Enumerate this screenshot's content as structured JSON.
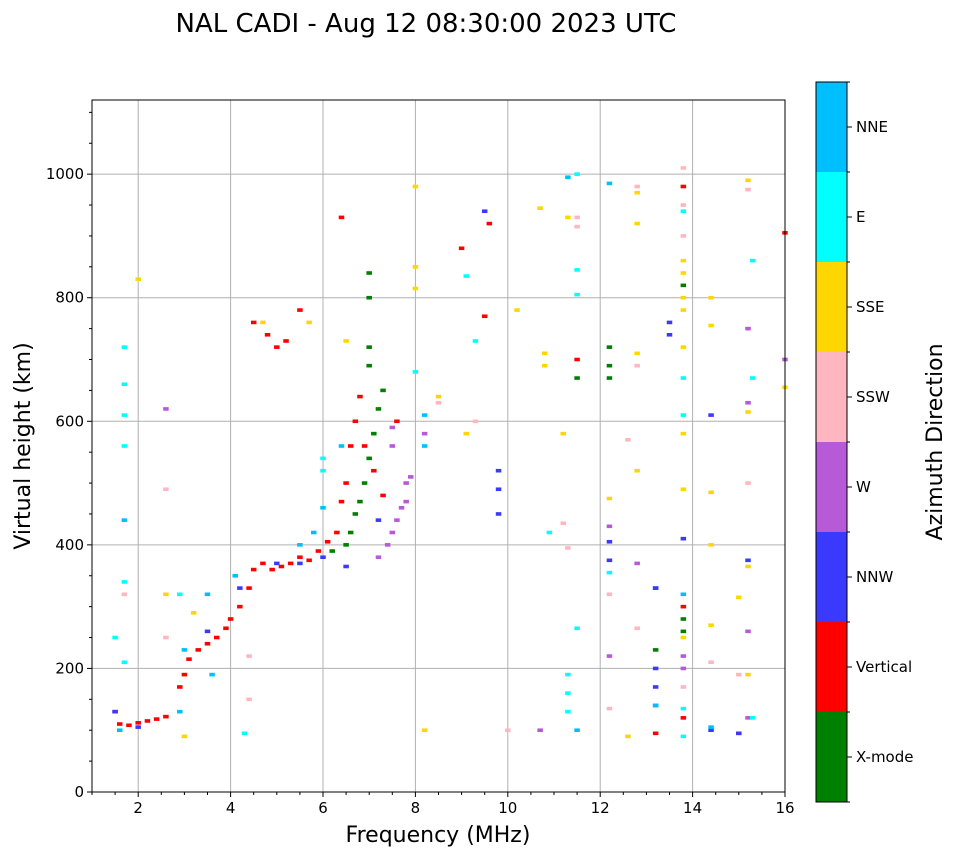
{
  "chart_data": {
    "type": "scatter",
    "title": "NAL CADI - Aug 12 08:30:00 2023 UTC",
    "xlabel": "Frequency (MHz)",
    "ylabel": "Virtual height (km)",
    "xlim": [
      1,
      16
    ],
    "ylim": [
      0,
      1120
    ],
    "x_ticks": [
      2,
      4,
      6,
      8,
      10,
      12,
      14,
      16
    ],
    "x_tick_labels": [
      "2",
      "4",
      "6",
      "8",
      "10",
      "12",
      "14",
      "16"
    ],
    "y_ticks": [
      0,
      200,
      400,
      600,
      800,
      1000
    ],
    "y_tick_labels": [
      "0",
      "200",
      "400",
      "600",
      "800",
      "1000"
    ],
    "grid": true,
    "colorbar": {
      "label": "Azimuth Direction",
      "entries": [
        {
          "name": "X-mode",
          "color": "#008000"
        },
        {
          "name": "Vertical",
          "color": "#ff0000"
        },
        {
          "name": "NNW",
          "color": "#3a3aff"
        },
        {
          "name": "W",
          "color": "#b65ad7"
        },
        {
          "name": "SSW",
          "color": "#ffb6c1"
        },
        {
          "name": "SSE",
          "color": "#ffd700"
        },
        {
          "name": "E",
          "color": "#00ffff"
        },
        {
          "name": "NNE",
          "color": "#00bfff"
        }
      ]
    },
    "series": [
      {
        "name": "Vertical",
        "points": [
          [
            1.5,
            130
          ],
          [
            1.6,
            110
          ],
          [
            1.8,
            108
          ],
          [
            2.0,
            112
          ],
          [
            2.2,
            115
          ],
          [
            2.4,
            118
          ],
          [
            2.6,
            122
          ],
          [
            2.9,
            170
          ],
          [
            3.0,
            190
          ],
          [
            3.1,
            215
          ],
          [
            3.3,
            230
          ],
          [
            3.5,
            240
          ],
          [
            3.7,
            250
          ],
          [
            3.9,
            265
          ],
          [
            4.0,
            280
          ],
          [
            4.2,
            300
          ],
          [
            4.4,
            330
          ],
          [
            4.5,
            360
          ],
          [
            4.7,
            370
          ],
          [
            4.9,
            360
          ],
          [
            5.1,
            365
          ],
          [
            5.3,
            370
          ],
          [
            5.5,
            380
          ],
          [
            5.7,
            375
          ],
          [
            5.9,
            390
          ],
          [
            6.1,
            405
          ],
          [
            6.3,
            420
          ],
          [
            6.4,
            470
          ],
          [
            6.5,
            500
          ],
          [
            6.6,
            560
          ],
          [
            6.7,
            600
          ],
          [
            6.8,
            640
          ],
          [
            6.9,
            560
          ],
          [
            7.1,
            520
          ],
          [
            7.3,
            480
          ],
          [
            7.6,
            600
          ],
          [
            4.5,
            760
          ],
          [
            4.8,
            740
          ],
          [
            5.0,
            720
          ],
          [
            5.2,
            730
          ],
          [
            5.5,
            780
          ],
          [
            6.4,
            930
          ],
          [
            9.0,
            880
          ],
          [
            9.6,
            920
          ],
          [
            9.5,
            770
          ],
          [
            11.5,
            700
          ],
          [
            13.8,
            980
          ],
          [
            13.8,
            300
          ],
          [
            13.2,
            95
          ],
          [
            13.8,
            120
          ],
          [
            15.0,
            95
          ],
          [
            16.0,
            905
          ]
        ]
      },
      {
        "name": "X-mode",
        "points": [
          [
            6.2,
            390
          ],
          [
            6.5,
            400
          ],
          [
            6.6,
            420
          ],
          [
            6.7,
            450
          ],
          [
            6.8,
            470
          ],
          [
            6.9,
            500
          ],
          [
            7.0,
            540
          ],
          [
            7.1,
            580
          ],
          [
            7.2,
            620
          ],
          [
            7.3,
            650
          ],
          [
            7.0,
            690
          ],
          [
            7.0,
            720
          ],
          [
            7.0,
            800
          ],
          [
            7.0,
            840
          ],
          [
            12.2,
            720
          ],
          [
            12.2,
            690
          ],
          [
            12.2,
            670
          ],
          [
            13.2,
            330
          ],
          [
            13.2,
            230
          ],
          [
            13.8,
            260
          ],
          [
            13.8,
            280
          ],
          [
            13.8,
            820
          ],
          [
            11.5,
            670
          ]
        ]
      },
      {
        "name": "NNW",
        "points": [
          [
            1.5,
            130
          ],
          [
            2.0,
            105
          ],
          [
            3.5,
            260
          ],
          [
            4.2,
            330
          ],
          [
            5.0,
            370
          ],
          [
            5.5,
            370
          ],
          [
            6.0,
            380
          ],
          [
            6.5,
            365
          ],
          [
            7.2,
            440
          ],
          [
            9.8,
            520
          ],
          [
            9.8,
            490
          ],
          [
            9.8,
            450
          ],
          [
            9.5,
            940
          ],
          [
            12.2,
            405
          ],
          [
            12.2,
            375
          ],
          [
            13.2,
            330
          ],
          [
            13.2,
            200
          ],
          [
            13.2,
            170
          ],
          [
            13.2,
            140
          ],
          [
            13.5,
            760
          ],
          [
            13.5,
            740
          ],
          [
            13.8,
            410
          ],
          [
            14.4,
            610
          ],
          [
            14.4,
            100
          ],
          [
            15.2,
            375
          ],
          [
            15.0,
            95
          ]
        ]
      },
      {
        "name": "W",
        "points": [
          [
            7.2,
            380
          ],
          [
            7.4,
            400
          ],
          [
            7.5,
            420
          ],
          [
            7.6,
            440
          ],
          [
            7.7,
            460
          ],
          [
            7.8,
            470
          ],
          [
            7.8,
            500
          ],
          [
            7.9,
            510
          ],
          [
            7.5,
            560
          ],
          [
            7.5,
            590
          ],
          [
            8.2,
            580
          ],
          [
            2.6,
            620
          ],
          [
            10.7,
            100
          ],
          [
            12.2,
            430
          ],
          [
            12.2,
            220
          ],
          [
            12.8,
            370
          ],
          [
            13.8,
            200
          ],
          [
            13.8,
            220
          ],
          [
            15.2,
            750
          ],
          [
            15.2,
            630
          ],
          [
            15.2,
            260
          ],
          [
            15.2,
            120
          ],
          [
            16.0,
            700
          ]
        ]
      },
      {
        "name": "SSW",
        "points": [
          [
            1.7,
            320
          ],
          [
            2.6,
            250
          ],
          [
            2.6,
            490
          ],
          [
            4.4,
            220
          ],
          [
            4.4,
            150
          ],
          [
            8.5,
            630
          ],
          [
            9.3,
            600
          ],
          [
            10.0,
            100
          ],
          [
            11.2,
            435
          ],
          [
            11.3,
            395
          ],
          [
            11.5,
            930
          ],
          [
            11.5,
            915
          ],
          [
            12.6,
            570
          ],
          [
            12.8,
            980
          ],
          [
            12.8,
            690
          ],
          [
            12.8,
            265
          ],
          [
            12.2,
            320
          ],
          [
            12.2,
            135
          ],
          [
            13.8,
            1010
          ],
          [
            13.8,
            950
          ],
          [
            13.8,
            900
          ],
          [
            13.8,
            170
          ],
          [
            14.4,
            210
          ],
          [
            15.2,
            500
          ],
          [
            15.2,
            975
          ],
          [
            15.0,
            190
          ]
        ]
      },
      {
        "name": "SSE",
        "points": [
          [
            2.0,
            830
          ],
          [
            2.6,
            320
          ],
          [
            3.0,
            90
          ],
          [
            3.2,
            290
          ],
          [
            4.7,
            760
          ],
          [
            5.7,
            760
          ],
          [
            6.5,
            730
          ],
          [
            8.0,
            980
          ],
          [
            8.0,
            850
          ],
          [
            8.0,
            815
          ],
          [
            8.2,
            100
          ],
          [
            8.5,
            640
          ],
          [
            9.1,
            580
          ],
          [
            10.2,
            780
          ],
          [
            10.7,
            945
          ],
          [
            10.8,
            710
          ],
          [
            10.8,
            690
          ],
          [
            11.2,
            580
          ],
          [
            11.3,
            930
          ],
          [
            12.2,
            475
          ],
          [
            12.6,
            90
          ],
          [
            12.8,
            970
          ],
          [
            12.8,
            920
          ],
          [
            12.8,
            710
          ],
          [
            12.8,
            520
          ],
          [
            13.8,
            860
          ],
          [
            13.8,
            840
          ],
          [
            13.8,
            800
          ],
          [
            13.8,
            780
          ],
          [
            13.8,
            720
          ],
          [
            13.8,
            580
          ],
          [
            13.8,
            490
          ],
          [
            13.8,
            250
          ],
          [
            14.4,
            800
          ],
          [
            14.4,
            755
          ],
          [
            14.4,
            485
          ],
          [
            14.4,
            270
          ],
          [
            14.4,
            400
          ],
          [
            15.0,
            315
          ],
          [
            15.2,
            990
          ],
          [
            15.2,
            615
          ],
          [
            15.2,
            365
          ],
          [
            15.2,
            190
          ],
          [
            16.0,
            655
          ]
        ]
      },
      {
        "name": "E",
        "points": [
          [
            1.7,
            720
          ],
          [
            1.7,
            660
          ],
          [
            1.7,
            610
          ],
          [
            1.7,
            560
          ],
          [
            1.7,
            340
          ],
          [
            1.7,
            210
          ],
          [
            1.5,
            250
          ],
          [
            2.9,
            320
          ],
          [
            4.3,
            95
          ],
          [
            6.0,
            540
          ],
          [
            6.0,
            520
          ],
          [
            8.0,
            680
          ],
          [
            9.1,
            835
          ],
          [
            9.3,
            730
          ],
          [
            10.9,
            420
          ],
          [
            11.3,
            130
          ],
          [
            11.3,
            160
          ],
          [
            11.3,
            190
          ],
          [
            11.5,
            1000
          ],
          [
            11.5,
            845
          ],
          [
            11.5,
            805
          ],
          [
            11.5,
            265
          ],
          [
            12.2,
            355
          ],
          [
            13.8,
            940
          ],
          [
            13.8,
            610
          ],
          [
            13.8,
            670
          ],
          [
            13.8,
            90
          ],
          [
            13.8,
            135
          ],
          [
            15.3,
            860
          ],
          [
            15.3,
            670
          ],
          [
            15.3,
            120
          ]
        ]
      },
      {
        "name": "NNE",
        "points": [
          [
            1.7,
            440
          ],
          [
            1.6,
            100
          ],
          [
            2.9,
            130
          ],
          [
            3.0,
            230
          ],
          [
            3.5,
            320
          ],
          [
            3.6,
            190
          ],
          [
            4.1,
            350
          ],
          [
            5.5,
            400
          ],
          [
            5.8,
            420
          ],
          [
            6.0,
            460
          ],
          [
            6.4,
            560
          ],
          [
            8.2,
            610
          ],
          [
            8.2,
            560
          ],
          [
            11.3,
            995
          ],
          [
            11.5,
            100
          ],
          [
            12.2,
            985
          ],
          [
            13.2,
            140
          ],
          [
            13.8,
            320
          ],
          [
            14.4,
            105
          ]
        ]
      }
    ]
  }
}
